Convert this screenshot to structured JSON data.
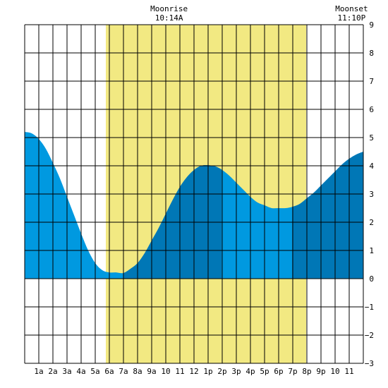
{
  "chart_data": {
    "type": "area",
    "annotations": [
      {
        "label": "Moonrise",
        "time": "10:14A",
        "hour": 10.23
      },
      {
        "label": "Moonset",
        "time": "11:10P",
        "hour": 23.17
      }
    ],
    "x_tick_labels": [
      "1a",
      "2a",
      "3a",
      "4a",
      "5a",
      "6a",
      "7a",
      "8a",
      "9a",
      "10",
      "11",
      "12",
      "1p",
      "2p",
      "3p",
      "4p",
      "5p",
      "6p",
      "7p",
      "8p",
      "9p",
      "10",
      "11"
    ],
    "y_tick_labels": [
      "9",
      "8",
      "7",
      "6",
      "5",
      "4",
      "3",
      "2",
      "1",
      "0",
      "−1",
      "−2",
      "−3"
    ],
    "xlim": [
      0,
      24
    ],
    "ylim": [
      -3,
      9
    ],
    "grid": true,
    "daylight": {
      "start_hour": 5.75,
      "end_hour": 19.95,
      "color": "#f2e982"
    },
    "colors": {
      "water_light": "#0099e0",
      "water_dark": "#0077b6"
    },
    "dark_bands": [
      [
        7.0,
        13.95
      ],
      [
        18.95,
        24
      ]
    ],
    "series": [
      {
        "x": [
          0,
          0.5,
          1,
          1.5,
          2,
          2.5,
          3,
          3.5,
          4,
          4.5,
          5,
          5.5,
          6,
          6.5,
          7,
          7.5,
          8,
          8.5,
          9,
          9.5,
          10,
          10.5,
          11,
          11.5,
          12,
          12.5,
          13,
          13.5,
          14,
          14.5,
          15,
          15.5,
          16,
          16.5,
          17,
          17.5,
          18,
          18.5,
          19,
          19.5,
          20,
          20.5,
          21,
          21.5,
          22,
          22.5,
          23,
          23.5,
          24
        ],
        "y": [
          5.2,
          5.15,
          4.95,
          4.6,
          4.1,
          3.55,
          2.9,
          2.25,
          1.6,
          1.0,
          0.55,
          0.3,
          0.22,
          0.22,
          0.2,
          0.35,
          0.55,
          0.9,
          1.35,
          1.8,
          2.3,
          2.8,
          3.25,
          3.6,
          3.85,
          4.0,
          4.02,
          3.98,
          3.85,
          3.65,
          3.4,
          3.15,
          2.9,
          2.7,
          2.6,
          2.5,
          2.5,
          2.5,
          2.55,
          2.65,
          2.85,
          3.05,
          3.3,
          3.55,
          3.8,
          4.05,
          4.25,
          4.4,
          4.5
        ]
      }
    ]
  }
}
